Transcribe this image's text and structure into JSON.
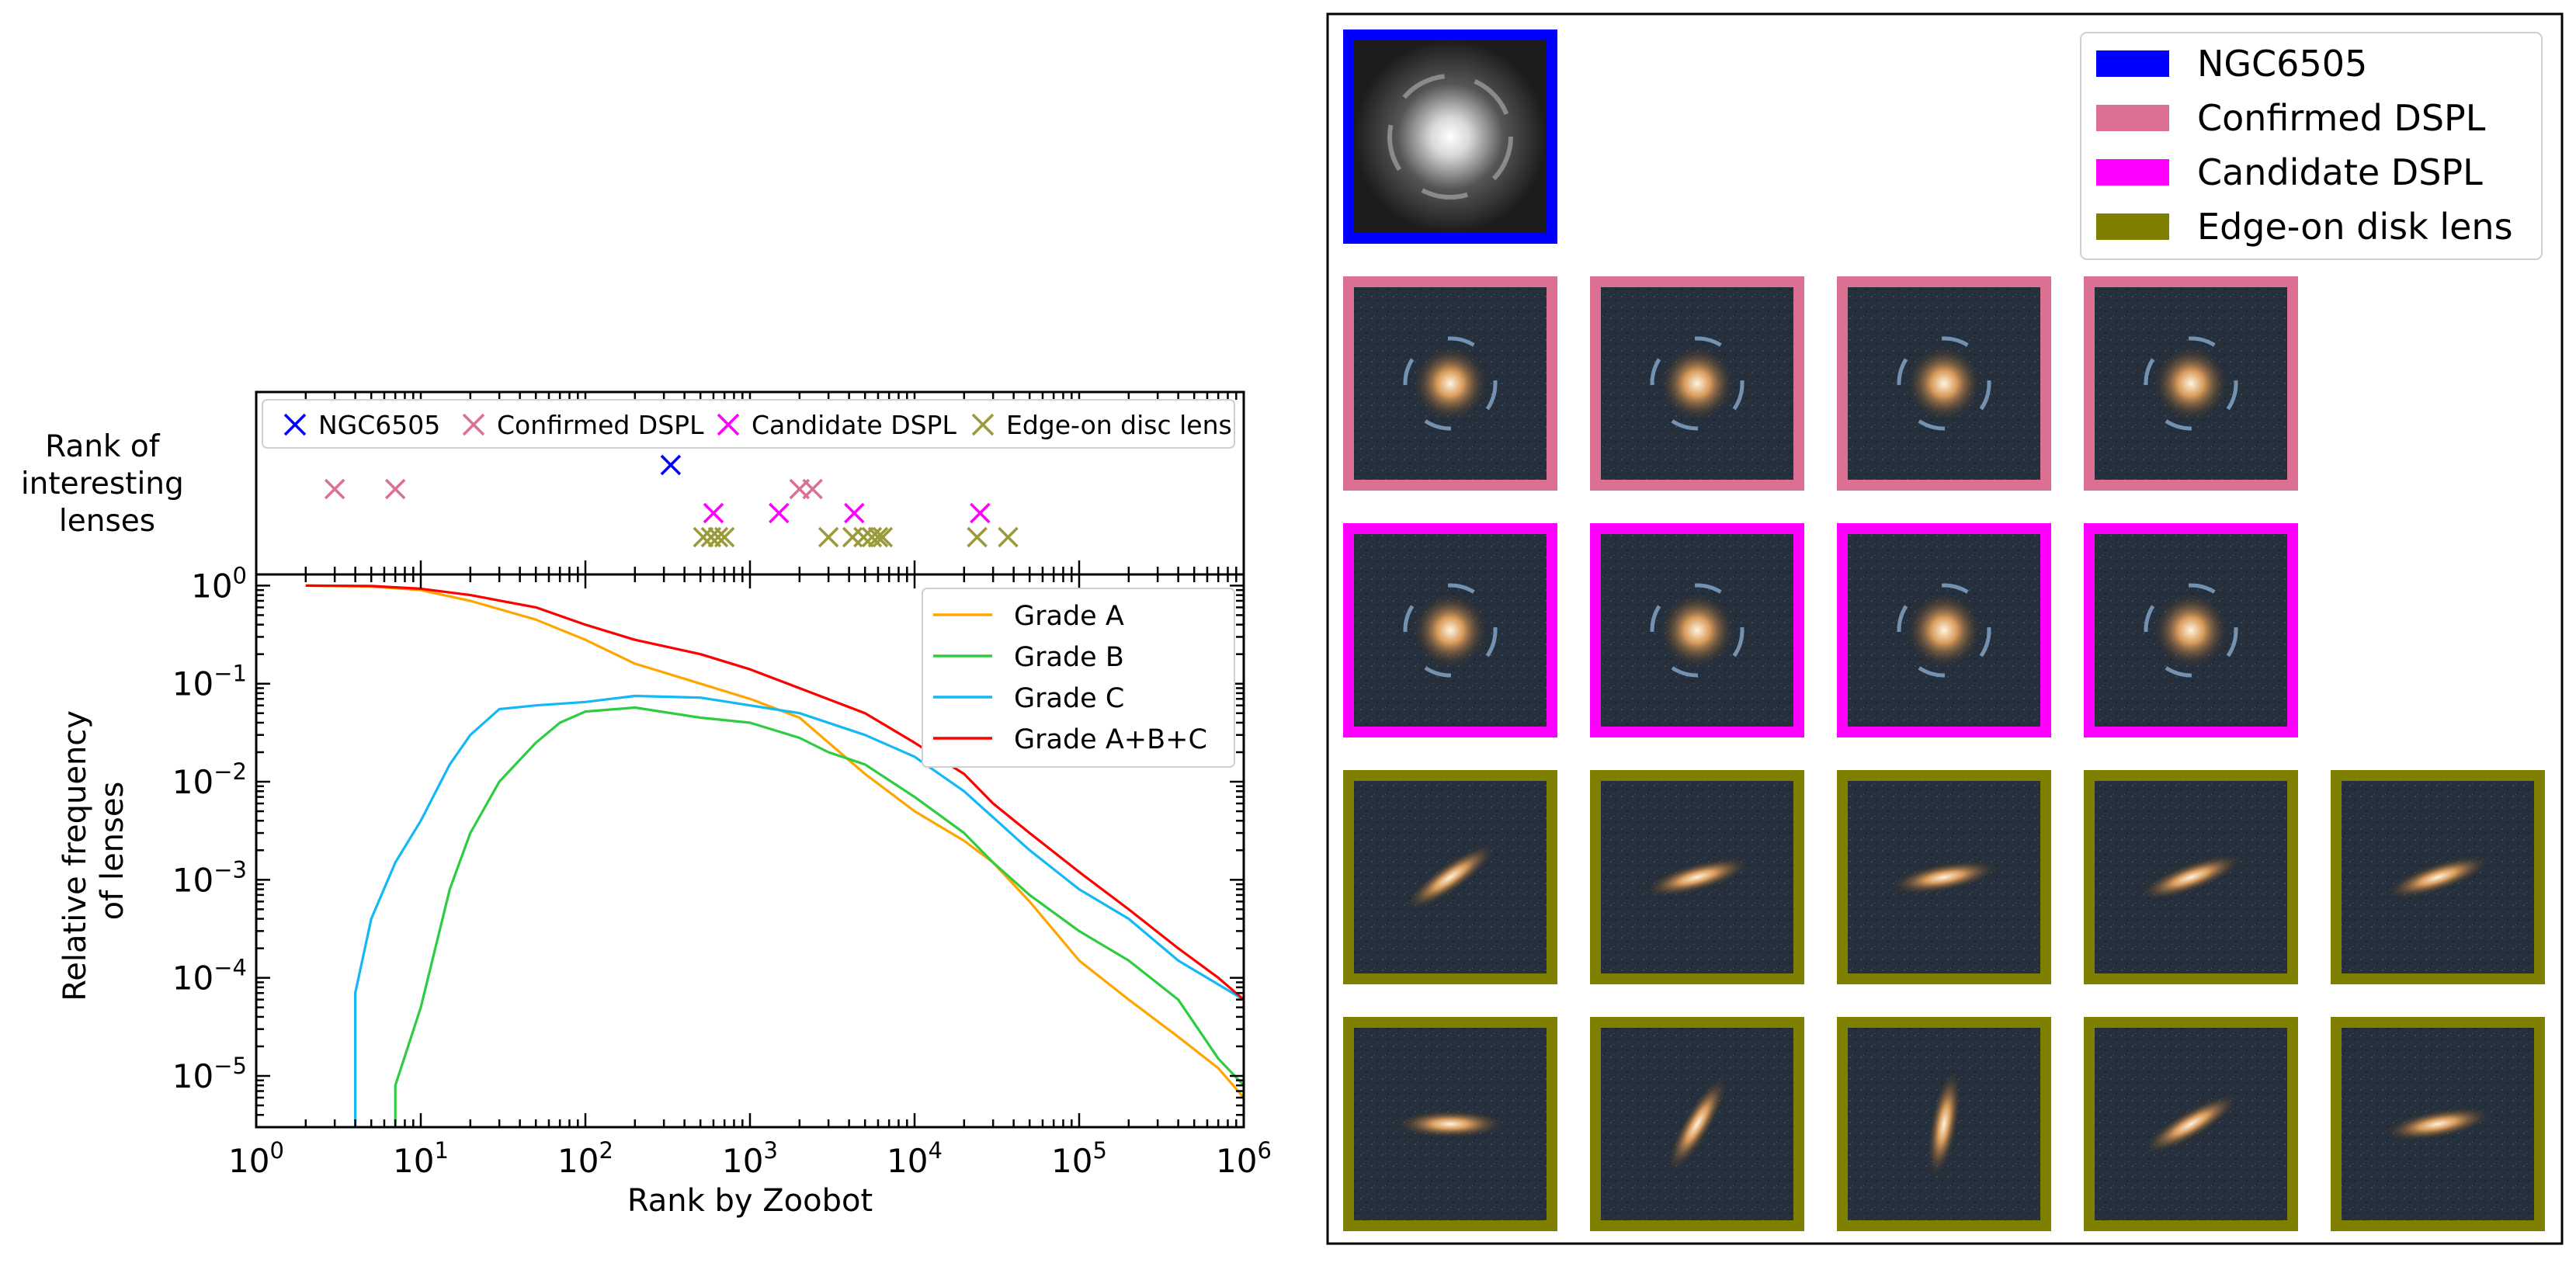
{
  "chart_data": [
    {
      "type": "scatter",
      "ylabel": "Rank of\ninteresting\nlenses",
      "xscale": "log",
      "xlim": [
        1,
        1000000
      ],
      "legend_position": "top",
      "series": [
        {
          "name": "NGC6505",
          "color": "#0000ff",
          "marker": "x",
          "row": 0,
          "x": [
            330
          ]
        },
        {
          "name": "Confirmed DSPL",
          "color": "#db7093",
          "marker": "x",
          "row": 1,
          "x": [
            3,
            7,
            2000,
            2400
          ]
        },
        {
          "name": "Candidate DSPL",
          "color": "#ff00ff",
          "marker": "x",
          "row": 2,
          "x": [
            600,
            1500,
            4300,
            25000
          ]
        },
        {
          "name": "Edge-on disc lens",
          "color": "#9a9a3a",
          "marker": "x",
          "row": 3,
          "x": [
            520,
            580,
            640,
            700,
            3000,
            4200,
            4900,
            5500,
            6000,
            6400,
            24000,
            37000
          ]
        }
      ]
    },
    {
      "type": "line",
      "xlabel": "Rank by Zoobot",
      "ylabel": "Relative frequency\nof lenses",
      "xscale": "log",
      "yscale": "log",
      "xlim": [
        1,
        1000000
      ],
      "ylim": [
        3e-06,
        1.3
      ],
      "x_ticks": [
        {
          "value": 1,
          "base": "10",
          "exp": "0"
        },
        {
          "value": 10,
          "base": "10",
          "exp": "1"
        },
        {
          "value": 100,
          "base": "10",
          "exp": "2"
        },
        {
          "value": 1000,
          "base": "10",
          "exp": "3"
        },
        {
          "value": 10000,
          "base": "10",
          "exp": "4"
        },
        {
          "value": 100000,
          "base": "10",
          "exp": "5"
        },
        {
          "value": 1000000,
          "base": "10",
          "exp": "6"
        }
      ],
      "y_ticks": [
        {
          "value": 1,
          "base": "10",
          "exp": "0"
        },
        {
          "value": 0.1,
          "base": "10",
          "exp": "−1"
        },
        {
          "value": 0.01,
          "base": "10",
          "exp": "−2"
        },
        {
          "value": 0.001,
          "base": "10",
          "exp": "−3"
        },
        {
          "value": 0.0001,
          "base": "10",
          "exp": "−4"
        },
        {
          "value": 1e-05,
          "base": "10",
          "exp": "−5"
        }
      ],
      "legend_position": "top-right",
      "grid": false,
      "series": [
        {
          "name": "Grade A",
          "color": "#ffa500",
          "points": [
            [
              2,
              1
            ],
            [
              5,
              0.98
            ],
            [
              10,
              0.9
            ],
            [
              20,
              0.7
            ],
            [
              50,
              0.45
            ],
            [
              100,
              0.28
            ],
            [
              200,
              0.16
            ],
            [
              500,
              0.1
            ],
            [
              1000,
              0.07
            ],
            [
              2000,
              0.045
            ],
            [
              5000,
              0.012
            ],
            [
              10000,
              0.005
            ],
            [
              20000,
              0.0025
            ],
            [
              30000,
              0.0015
            ],
            [
              50000,
              0.0006
            ],
            [
              100000,
              0.00015
            ],
            [
              200000,
              6e-05
            ],
            [
              400000,
              2.5e-05
            ],
            [
              700000,
              1.2e-05
            ],
            [
              1000000,
              6e-06
            ]
          ]
        },
        {
          "name": "Grade B",
          "color": "#2ecc40",
          "points": [
            [
              7,
              3e-06
            ],
            [
              7,
              8e-06
            ],
            [
              10,
              5e-05
            ],
            [
              15,
              0.0008
            ],
            [
              20,
              0.003
            ],
            [
              30,
              0.01
            ],
            [
              50,
              0.025
            ],
            [
              70,
              0.04
            ],
            [
              100,
              0.052
            ],
            [
              200,
              0.057
            ],
            [
              500,
              0.045
            ],
            [
              1000,
              0.04
            ],
            [
              2000,
              0.028
            ],
            [
              3000,
              0.02
            ],
            [
              5000,
              0.015
            ],
            [
              10000,
              0.007
            ],
            [
              20000,
              0.003
            ],
            [
              30000,
              0.0015
            ],
            [
              50000,
              0.0007
            ],
            [
              100000,
              0.0003
            ],
            [
              200000,
              0.00015
            ],
            [
              400000,
              6e-05
            ],
            [
              700000,
              1.5e-05
            ],
            [
              1000000,
              8e-06
            ]
          ]
        },
        {
          "name": "Grade C",
          "color": "#13b8f5",
          "points": [
            [
              4,
              3e-06
            ],
            [
              4,
              7e-05
            ],
            [
              5,
              0.0004
            ],
            [
              7,
              0.0015
            ],
            [
              10,
              0.004
            ],
            [
              15,
              0.015
            ],
            [
              20,
              0.03
            ],
            [
              30,
              0.055
            ],
            [
              50,
              0.06
            ],
            [
              100,
              0.065
            ],
            [
              200,
              0.075
            ],
            [
              500,
              0.072
            ],
            [
              1000,
              0.06
            ],
            [
              2000,
              0.05
            ],
            [
              5000,
              0.03
            ],
            [
              10000,
              0.018
            ],
            [
              20000,
              0.008
            ],
            [
              50000,
              0.002
            ],
            [
              100000,
              0.0008
            ],
            [
              200000,
              0.0004
            ],
            [
              400000,
              0.00015
            ],
            [
              1000000,
              6e-05
            ]
          ]
        },
        {
          "name": "Grade A+B+C",
          "color": "#ff0000",
          "points": [
            [
              2,
              1
            ],
            [
              5,
              0.99
            ],
            [
              10,
              0.93
            ],
            [
              20,
              0.8
            ],
            [
              50,
              0.6
            ],
            [
              100,
              0.4
            ],
            [
              200,
              0.28
            ],
            [
              500,
              0.2
            ],
            [
              1000,
              0.14
            ],
            [
              2000,
              0.09
            ],
            [
              5000,
              0.05
            ],
            [
              10000,
              0.025
            ],
            [
              20000,
              0.012
            ],
            [
              30000,
              0.006
            ],
            [
              50000,
              0.003
            ],
            [
              100000,
              0.0012
            ],
            [
              200000,
              0.0005
            ],
            [
              400000,
              0.0002
            ],
            [
              700000,
              0.0001
            ],
            [
              1000000,
              6e-05
            ]
          ]
        }
      ]
    },
    {
      "type": "image-grid",
      "legend_position": "top-right",
      "legend": [
        {
          "name": "NGC6505",
          "color": "#0000ff"
        },
        {
          "name": "Confirmed DSPL",
          "color": "#db7093"
        },
        {
          "name": "Candidate DSPL",
          "color": "#ff00ff"
        },
        {
          "name": "Edge-on disk lens",
          "color": "#808000"
        }
      ],
      "rows": [
        {
          "category": "NGC6505",
          "count": 1
        },
        {
          "category": "Confirmed DSPL",
          "count": 4
        },
        {
          "category": "Candidate DSPL",
          "count": 4
        },
        {
          "category": "Edge-on disk lens",
          "count": 5
        },
        {
          "category": "Edge-on disk lens",
          "count": 5
        }
      ]
    }
  ]
}
